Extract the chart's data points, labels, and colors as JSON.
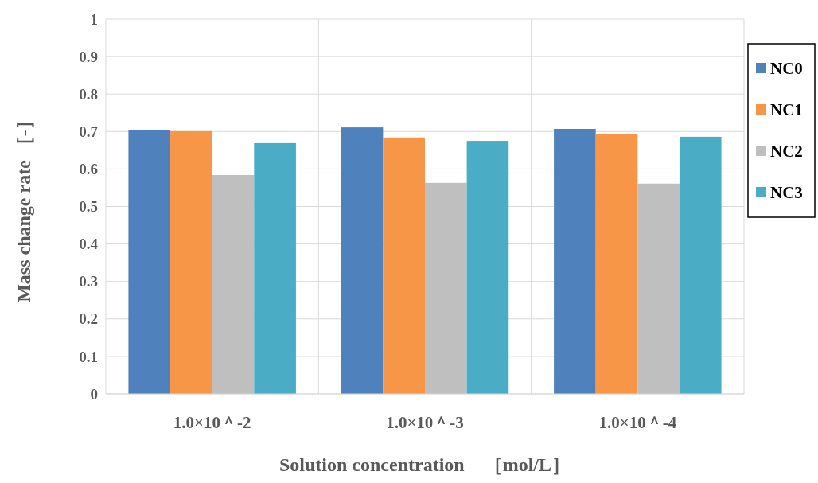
{
  "chart_data": {
    "type": "bar",
    "xlabel": "Solution concentration　［mol/L］",
    "ylabel": "Mass change rate ［-］",
    "categories": [
      "1.0×10＾-2",
      "1.0×10＾-3",
      "1.0×10＾-4"
    ],
    "series": [
      {
        "name": "NC0",
        "color": "#4f81bd",
        "values": [
          0.703,
          0.711,
          0.707
        ]
      },
      {
        "name": "NC1",
        "color": "#f79646",
        "values": [
          0.701,
          0.684,
          0.694
        ]
      },
      {
        "name": "NC2",
        "color": "#bfbfbf",
        "values": [
          0.584,
          0.563,
          0.561
        ]
      },
      {
        "name": "NC3",
        "color": "#4bacc6",
        "values": [
          0.669,
          0.675,
          0.686
        ]
      }
    ],
    "ylim": [
      0,
      1
    ],
    "yticks": [
      0,
      0.1,
      0.2,
      0.3,
      0.4,
      0.5,
      0.6,
      0.7,
      0.8,
      0.9,
      1
    ],
    "grid": true,
    "legend": "right"
  }
}
